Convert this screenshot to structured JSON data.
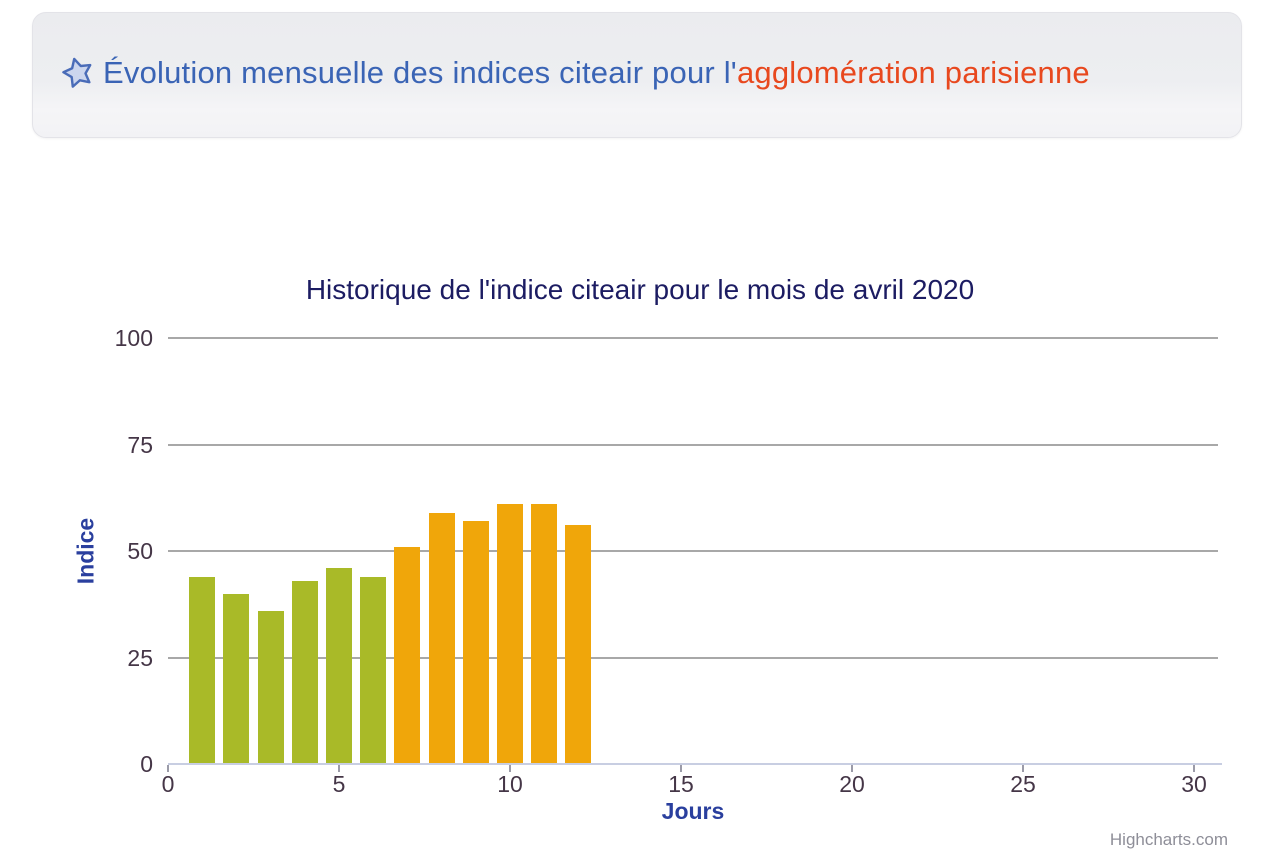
{
  "header": {
    "icon": "star-icon",
    "text_primary": "Évolution mensuelle des indices citeair pour l'",
    "text_highlight": "agglomération parisienne",
    "primary_color": "#3a64b5",
    "highlight_color": "#e8481e"
  },
  "chart_data": {
    "type": "bar",
    "title": "Historique de l'indice citeair pour le mois de avril 2020",
    "xlabel": "Jours",
    "ylabel": "Indice",
    "x": [
      1,
      2,
      3,
      4,
      5,
      6,
      7,
      8,
      9,
      10,
      11,
      12
    ],
    "values": [
      44,
      40,
      36,
      43,
      46,
      44,
      51,
      59,
      57,
      61,
      61,
      56
    ],
    "bar_colors": [
      "#A9BA28",
      "#A9BA28",
      "#A9BA28",
      "#A9BA28",
      "#A9BA28",
      "#A9BA28",
      "#F0A60A",
      "#F0A60A",
      "#F0A60A",
      "#F0A60A",
      "#F0A60A",
      "#F0A60A"
    ],
    "color_legend": {
      "low_25_50": "#A9BA28",
      "medium_50_75": "#F0A60A"
    },
    "xlim": [
      0,
      30.7
    ],
    "ylim": [
      0,
      100
    ],
    "xticks": [
      0,
      5,
      10,
      15,
      20,
      25,
      30
    ],
    "yticks": [
      0,
      25,
      50,
      75,
      100
    ],
    "grid": true,
    "legend": false,
    "credits": "Highcharts.com"
  }
}
